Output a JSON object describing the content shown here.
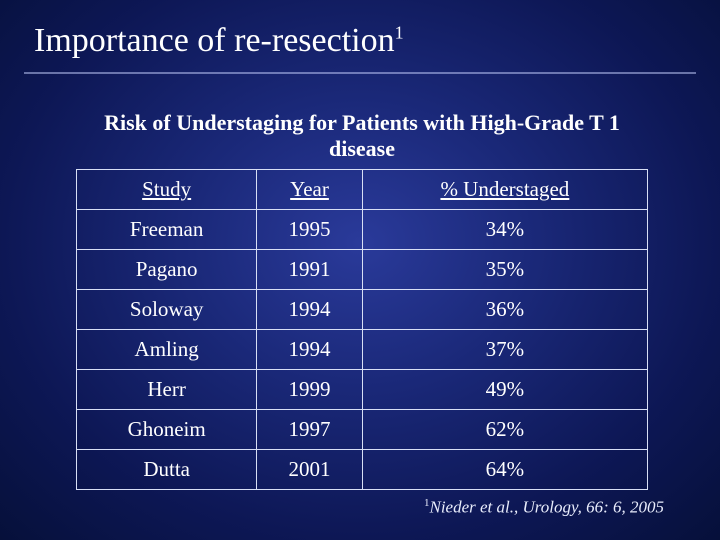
{
  "slide": {
    "title": "Importance of re-resection",
    "title_sup": "1",
    "title_color": "#ffffff",
    "title_fontsize": 34,
    "background_gradient": [
      "#2a3a9a",
      "#1a2878",
      "#0d1755",
      "#06103a"
    ],
    "rule_color": "rgba(200,210,255,0.5)"
  },
  "table": {
    "type": "table",
    "caption": "Risk of Understaging for Patients with High-Grade T 1 disease",
    "caption_fontsize": 22,
    "caption_fontweight": "bold",
    "border_color": "#d8dff5",
    "cell_fontsize": 21,
    "text_color": "#ffffff",
    "columns": [
      "Study",
      "Year",
      "% Understaged"
    ],
    "rows": [
      [
        "Freeman",
        "1995",
        "34%"
      ],
      [
        "Pagano",
        "1991",
        "35%"
      ],
      [
        "Soloway",
        "1994",
        "36%"
      ],
      [
        "Amling",
        "1994",
        "37%"
      ],
      [
        "Herr",
        "1999",
        "49%"
      ],
      [
        "Ghoneim",
        "1997",
        "62%"
      ],
      [
        "Dutta",
        "2001",
        "64%"
      ]
    ]
  },
  "citation": {
    "sup": "1",
    "text": "Nieder et al., Urology, 66: 6, 2005",
    "fontsize": 17,
    "color": "#e8ecfb"
  }
}
